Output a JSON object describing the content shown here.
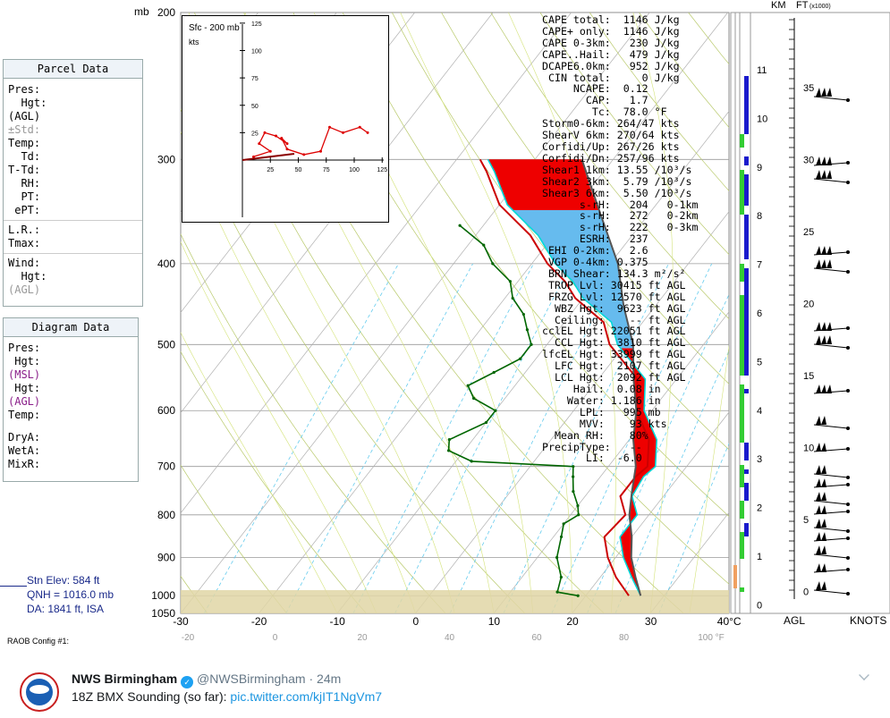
{
  "chart_data": {
    "type": "line",
    "title": "",
    "xlabel": "",
    "ylabel": "mb",
    "pressure_ticks": [
      {
        "p": 200,
        "label": "200"
      },
      {
        "p": 300,
        "label": "300"
      },
      {
        "p": 400,
        "label": "400"
      },
      {
        "p": 500,
        "label": "500"
      },
      {
        "p": 600,
        "label": "600"
      },
      {
        "p": 700,
        "label": "700"
      },
      {
        "p": 800,
        "label": "800"
      },
      {
        "p": 900,
        "label": "900"
      },
      {
        "p": 1000,
        "label": "1000"
      },
      {
        "p": 1050,
        "label": "1050"
      }
    ],
    "temp_c_ticks": [
      "-30",
      "-20",
      "-10",
      "0",
      "10",
      "20",
      "30",
      "40°C"
    ],
    "temp_f_ticks": [
      "-20",
      "0",
      "20",
      "40",
      "60",
      "80",
      "100 °F"
    ],
    "ylim": [
      200,
      1050
    ],
    "xlim_c": [
      -30,
      40
    ],
    "series": [
      {
        "name": "Temperature",
        "color": "#cc0000",
        "points": [
          [
            1000,
            25.5
          ],
          [
            950,
            22
          ],
          [
            900,
            19
          ],
          [
            850,
            16.5
          ],
          [
            800,
            17
          ],
          [
            760,
            14.5
          ],
          [
            720,
            14.5
          ],
          [
            700,
            15
          ],
          [
            650,
            12.5
          ],
          [
            600,
            8
          ],
          [
            550,
            5
          ],
          [
            500,
            -2
          ],
          [
            470,
            -5
          ],
          [
            440,
            -11
          ],
          [
            420,
            -14
          ],
          [
            400,
            -18
          ],
          [
            370,
            -23
          ],
          [
            340,
            -30
          ],
          [
            310,
            -35
          ],
          [
            300,
            -37
          ]
        ]
      },
      {
        "name": "Dewpoint",
        "color": "#006600",
        "points": [
          [
            1000,
            19
          ],
          [
            990,
            16
          ],
          [
            950,
            15
          ],
          [
            900,
            12.5
          ],
          [
            850,
            11
          ],
          [
            820,
            10
          ],
          [
            800,
            11
          ],
          [
            780,
            10
          ],
          [
            750,
            8
          ],
          [
            720,
            6.5
          ],
          [
            700,
            5.5
          ],
          [
            690,
            -8
          ],
          [
            670,
            -12
          ],
          [
            650,
            -13
          ],
          [
            620,
            -10
          ],
          [
            600,
            -10
          ],
          [
            580,
            -14
          ],
          [
            560,
            -16
          ],
          [
            540,
            -14
          ],
          [
            520,
            -12
          ],
          [
            500,
            -12
          ],
          [
            480,
            -14
          ],
          [
            460,
            -16
          ],
          [
            440,
            -19
          ],
          [
            420,
            -21
          ],
          [
            400,
            -25
          ],
          [
            380,
            -28
          ],
          [
            360,
            -33
          ]
        ]
      },
      {
        "name": "Virtual Temperature",
        "color": "#00d8d8",
        "points": [
          [
            1000,
            27
          ],
          [
            950,
            24
          ],
          [
            900,
            21
          ],
          [
            850,
            18.5
          ],
          [
            800,
            18.5
          ],
          [
            760,
            16
          ],
          [
            720,
            15.5
          ],
          [
            700,
            16
          ],
          [
            650,
            13.5
          ],
          [
            600,
            9
          ],
          [
            550,
            6
          ],
          [
            500,
            -1
          ],
          [
            470,
            -4
          ],
          [
            440,
            -10
          ],
          [
            420,
            -13
          ],
          [
            400,
            -17
          ],
          [
            370,
            -22
          ],
          [
            340,
            -29
          ],
          [
            310,
            -34
          ],
          [
            300,
            -36
          ]
        ]
      },
      {
        "name": "Parcel",
        "color": "#555555",
        "points": [
          [
            1000,
            27
          ],
          [
            950,
            24.5
          ],
          [
            900,
            22
          ],
          [
            850,
            20
          ],
          [
            800,
            17.5
          ],
          [
            750,
            15.5
          ],
          [
            700,
            13.5
          ],
          [
            650,
            10.5
          ],
          [
            600,
            8
          ],
          [
            550,
            4.5
          ],
          [
            500,
            1
          ],
          [
            450,
            -4
          ],
          [
            400,
            -9
          ],
          [
            350,
            -16
          ],
          [
            300,
            -24
          ]
        ]
      }
    ],
    "hodograph": {
      "title": "Sfc - 200 mb",
      "units": "kts",
      "ticks": [
        "125",
        "100",
        "75",
        "50",
        "25",
        "25",
        "50",
        "75",
        "100",
        "125"
      ],
      "points": [
        [
          10,
          3
        ],
        [
          25,
          8
        ],
        [
          15,
          15
        ],
        [
          20,
          25
        ],
        [
          30,
          22
        ],
        [
          40,
          15
        ],
        [
          35,
          20
        ],
        [
          40,
          10
        ],
        [
          55,
          5
        ],
        [
          70,
          8
        ],
        [
          78,
          30
        ],
        [
          90,
          25
        ],
        [
          105,
          30
        ],
        [
          112,
          25
        ]
      ]
    }
  },
  "axis": {
    "mb_label": "mb",
    "km_label": "KM",
    "ft_label": "FT",
    "ft_unit": "(x1000)",
    "agl_label": "AGL",
    "knots_label": "KNOTS",
    "km_ticks": [
      "11",
      "10",
      "9",
      "8",
      "7",
      "6",
      "5",
      "4",
      "3",
      "2",
      "1",
      "0"
    ],
    "ft_ticks": [
      "35",
      "30",
      "25",
      "20",
      "15",
      "10",
      "5",
      "0"
    ]
  },
  "parcel_panel": {
    "title": "Parcel Data",
    "rows1": [
      "Pres:",
      "  Hgt:",
      "(AGL)",
      "±Std:",
      "Temp:",
      "  Td:",
      "T-Td:",
      "  RH:",
      "  PT:",
      " ePT:"
    ],
    "rows2": [
      "L.R.:",
      "Tmax:"
    ],
    "rows3": [
      "Wind:",
      "  Hgt:",
      "(AGL)"
    ]
  },
  "diagram_panel": {
    "title": "Diagram Data",
    "rows1": [
      "Pres:",
      " Hgt:",
      "(MSL)",
      " Hgt:",
      "(AGL)",
      "Temp:"
    ],
    "rows2": [
      "DryA:",
      "WetA:",
      "MixR:"
    ]
  },
  "station": {
    "elev": "Stn Elev: 584 ft",
    "qnh": "QNH = 1016.0 mb",
    "da": "DA: 1841 ft, ISA"
  },
  "config_label": "RAOB Config #1:",
  "stats": [
    "CAPE total:  1146 J/kg",
    "CAPE+ only:  1146 J/kg",
    "CAPE 0-3km:   230 J/kg",
    "CAPE..Hail:   479 J/kg",
    "DCAPE6.0km:   952 J/kg",
    " CIN total:     0 J/kg",
    "     NCAPE:  0.12",
    "       CAP:   1.7",
    "        Tc:  78.0 °F",
    "Storm0-6km: 264/47 kts",
    "ShearV 6km: 270/64 kts",
    "Corfidi/Up: 267/26 kts",
    "Corfidi/Dn: 257/96 kts",
    "Shear1 1km: 13.55 /10³/s",
    "Shear2 3km:  5.79 /10³/s",
    "Shear3 6km:  5.50 /10³/s",
    "      s-rH:   204   0-1km",
    "      s-rH:   272   0-2km",
    "      s-rH:   222   0-3km",
    "      ESRH:   237",
    " EHI 0-2km:   2.6",
    " VGP 0-4km: 0.375",
    " BRN Shear: 134.3 m²/s²",
    " TROP Lvl: 30415 ft AGL",
    " FRZG Lvl: 12570 ft AGL",
    "  WBZ Hgt:  9623 ft AGL",
    "  Ceiling:    -- ft AGL",
    "cclEL Hgt: 22051 ft AGL",
    "  CCL Hgt:  3810 ft AGL",
    "lfcEL Hgt: 33999 ft AGL",
    "  LFC Hgt:  2107 ft AGL",
    "  LCL Hgt:  2092 ft AGL",
    "     Hail:  0.08 in",
    "    Water: 1.186 in",
    "      LPL:   995 mb",
    "      MVV:    93 kts",
    "  Mean RH:    80%",
    "PrecipType:   --",
    "       LI:  -6.0"
  ],
  "tweet": {
    "name": "NWS Birmingham",
    "handle": "@NWSBirmingham",
    "sep": "·",
    "time": "24m",
    "text": "18Z BMX Sounding (so far):",
    "link": "pic.twitter.com/kjIT1NgVm7",
    "colors": {
      "name": "#14171a",
      "meta": "#657786",
      "link": "#1b95e0",
      "verified": "#1da1f2"
    }
  }
}
